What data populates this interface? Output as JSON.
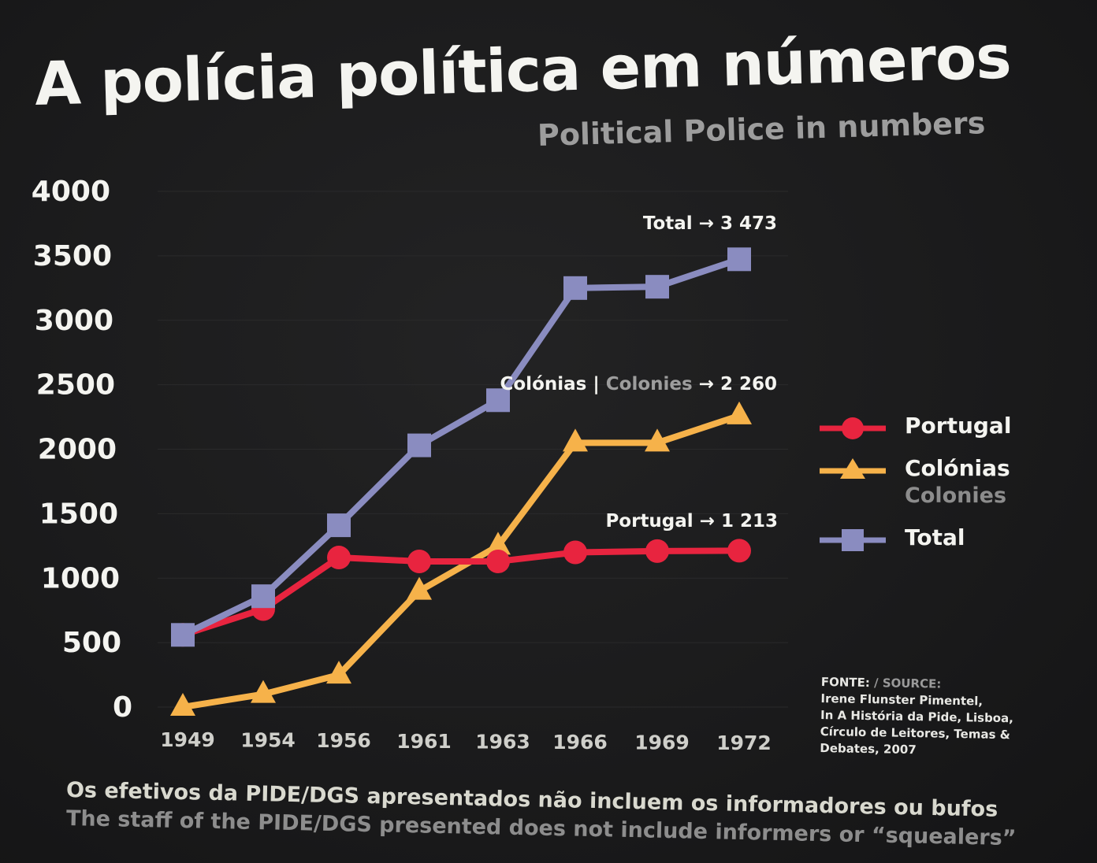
{
  "title": "A polícia política em números",
  "subtitle": "Political Police in numbers",
  "colors": {
    "portugal": "#e8243f",
    "colonias": "#f6b24a",
    "total": "#8a8cc0",
    "background": "#1a1a1b"
  },
  "chart_data": {
    "type": "line",
    "title": "A polícia política em números",
    "categories": [
      "1949",
      "1954",
      "1956",
      "1961",
      "1963",
      "1966",
      "1969",
      "1972"
    ],
    "y_ticks": [
      "0",
      "500",
      "1000",
      "1500",
      "2000",
      "2500",
      "3000",
      "3500",
      "4000"
    ],
    "ylim": [
      0,
      4000
    ],
    "series": [
      {
        "name": "Portugal",
        "marker": "circle",
        "values": [
          560,
          760,
          1160,
          1130,
          1130,
          1200,
          1210,
          1213
        ]
      },
      {
        "name": "Colónias",
        "marker": "triangle",
        "values": [
          0,
          100,
          250,
          900,
          1250,
          2050,
          2050,
          2260
        ]
      },
      {
        "name": "Total",
        "marker": "square",
        "values": [
          560,
          860,
          1410,
          2030,
          2380,
          3250,
          3260,
          3473
        ]
      }
    ],
    "annotations": {
      "total": {
        "label": "Total",
        "arrow": "→",
        "value": "3 473"
      },
      "colonias": {
        "label_pt": "Colónias",
        "separator": "|",
        "label_en": "Colonies",
        "arrow": "→",
        "value": "2 260"
      },
      "portugal": {
        "label": "Portugal",
        "arrow": "→",
        "value": "1 213"
      }
    }
  },
  "legend": {
    "portugal": "Portugal",
    "colonias": "Colónias",
    "colonias_en": "Colonies",
    "total": "Total"
  },
  "source": {
    "label_pt": "FONTE:",
    "label_en": "/ SOURCE:",
    "line1": "Irene Flunster Pimentel,",
    "line2": "In A História da Pide, Lisboa,",
    "line3": "Círculo de Leitores, Temas &",
    "line4": "Debates, 2007"
  },
  "note": {
    "pt": "Os efetivos da PIDE/DGS apresentados não incluem os informadores ou bufos",
    "en": "The staff of the PIDE/DGS presented does not include informers or “squealers”"
  }
}
